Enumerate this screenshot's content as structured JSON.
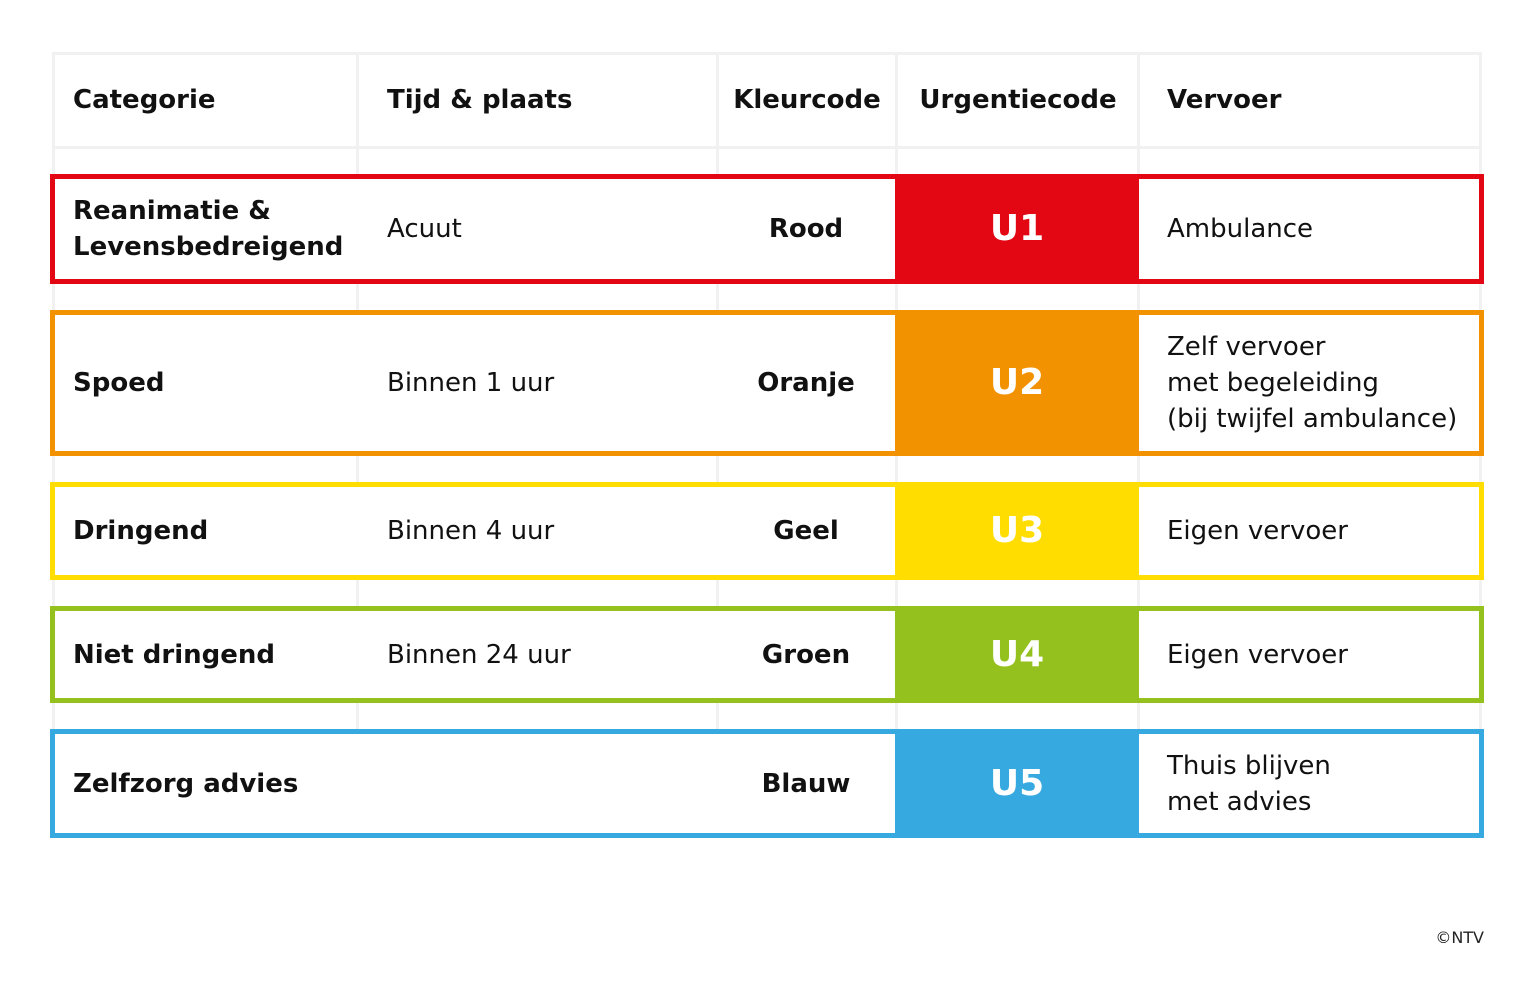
{
  "table": {
    "header": [
      "Categorie",
      "Tijd & plaats",
      "Kleurcode",
      "Urgentiecode",
      "Vervoer"
    ],
    "rows": [
      {
        "category": "Reanimatie &\nLevensbedreigend",
        "time": "Acuut",
        "color_name": "Rood",
        "code": "U1",
        "transport": "Ambulance",
        "color": "#e30613"
      },
      {
        "category": "Spoed",
        "time": "Binnen 1 uur",
        "color_name": "Oranje",
        "code": "U2",
        "transport": "Zelf vervoer\nmet begeleiding\n(bij twijfel ambulance)",
        "color": "#f39200"
      },
      {
        "category": "Dringend",
        "time": "Binnen 4 uur",
        "color_name": "Geel",
        "code": "U3",
        "transport": "Eigen vervoer",
        "color": "#ffdd00"
      },
      {
        "category": "Niet dringend",
        "time": "Binnen 24 uur",
        "color_name": "Groen",
        "code": "U4",
        "transport": "Eigen vervoer",
        "color": "#95c11f"
      },
      {
        "category": "Zelfzorg advies",
        "color_name": "Blauw",
        "code": "U5",
        "transport": "Thuis blijven\nmet advies",
        "color": "#36a9e1"
      }
    ]
  },
  "footer": {
    "copyright": "©NTV"
  }
}
